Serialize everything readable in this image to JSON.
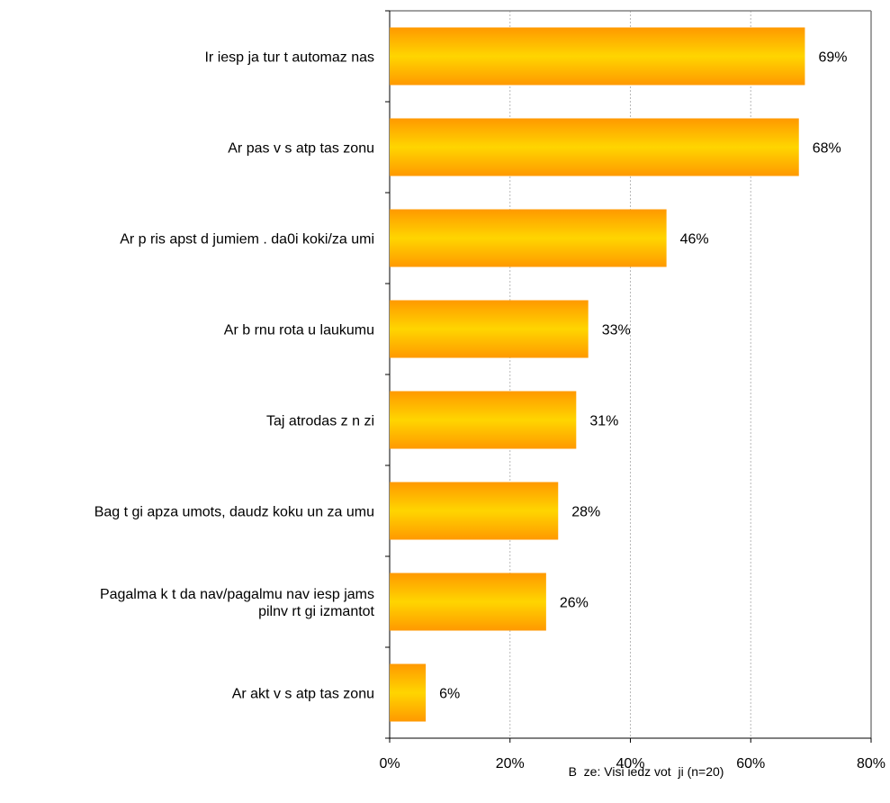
{
  "chart_data": {
    "type": "bar",
    "orientation": "horizontal",
    "categories": [
      "Ir iesp  ja tur  t automaz nas",
      "Ar pas v  s atp  tas zonu",
      "Ar p  ris apst  d jumiem  .  da0i koki/za umi",
      "Ar b  rnu rota u laukumu",
      "Taj   atrodas z     n zi",
      "Bag  t gi apza umots, daudz koku un za umu",
      "Pagalma k   t  da nav/pagalmu nav iesp  jams pilnv  rt gi izmantot",
      "Ar akt v  s atp  tas zonu"
    ],
    "category_lines": [
      [
        "Ir iesp  ja tur  t automaz nas"
      ],
      [
        "Ar pas v  s atp  tas zonu"
      ],
      [
        "Ar p  ris apst  d jumiem  .  da0i koki/za umi"
      ],
      [
        "Ar b  rnu rota u laukumu"
      ],
      [
        "Taj   atrodas z     n zi"
      ],
      [
        "Bag  t gi apza umots, daudz koku un za umu"
      ],
      [
        "Pagalma k   t  da nav/pagalmu nav iesp  jams",
        "pilnv  rt gi izmantot"
      ],
      [
        "Ar akt v  s atp  tas zonu"
      ]
    ],
    "values": [
      69,
      68,
      46,
      33,
      31,
      28,
      26,
      6
    ],
    "data_labels": [
      "69%",
      "68%",
      "46%",
      "33%",
      "31%",
      "28%",
      "26%",
      "6%"
    ],
    "xlim": [
      0,
      80
    ],
    "xticks": [
      0,
      20,
      40,
      60,
      80
    ],
    "xtick_labels": [
      "0%",
      "20%",
      "40%",
      "60%",
      "80%"
    ],
    "grid": "vertical dashed",
    "bar_color_light": "#ffd500",
    "bar_color_dark": "#ff9900",
    "footnote": "B  ze: Visi iedz vot  ji (n=20)"
  }
}
